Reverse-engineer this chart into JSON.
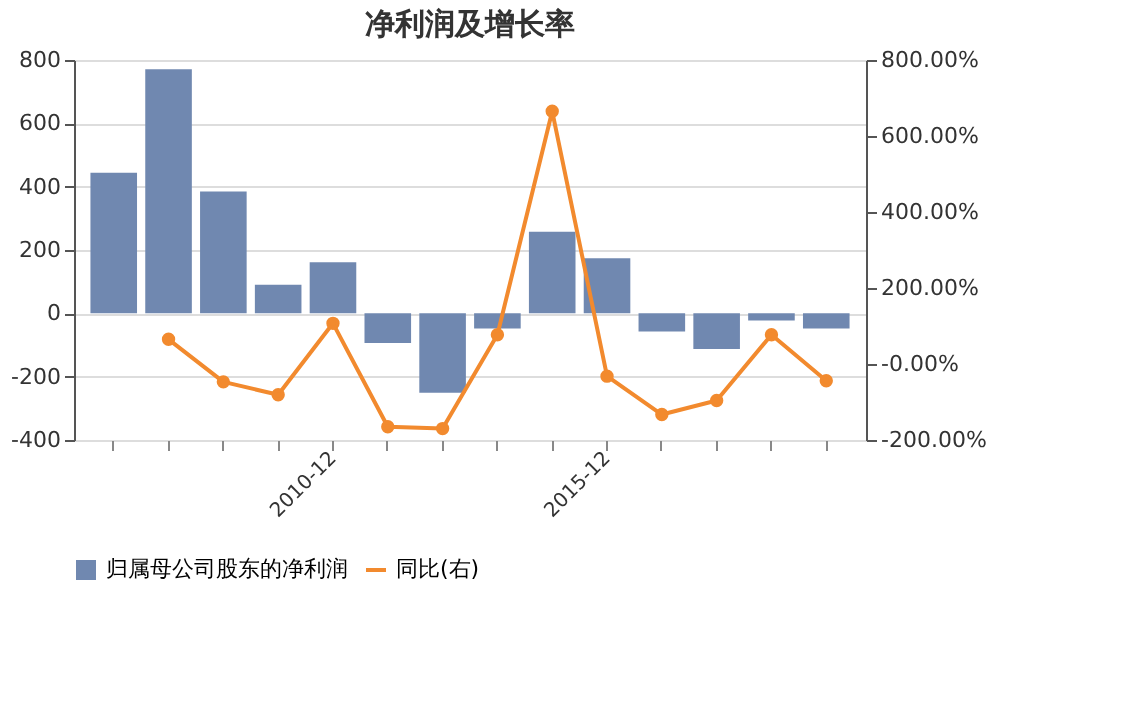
{
  "chart_data": {
    "type": "bar",
    "title": "净利润及增长率",
    "categories": [
      null,
      null,
      null,
      null,
      "2010-12",
      null,
      null,
      null,
      null,
      "2015-12",
      null,
      null,
      null,
      null
    ],
    "series": [
      {
        "name": "归属母公司股东的净利润",
        "color": "#7088b0",
        "values": [
          444,
          771,
          385,
          90,
          161,
          -94,
          -251,
          -48,
          258,
          174,
          -57,
          -113,
          -23,
          -48
        ]
      },
      {
        "name": "同比(右)",
        "type": "line",
        "axis": "y2",
        "color": "#f28a2e",
        "marker": "circle",
        "values": [
          null,
          65,
          -47,
          -81,
          107,
          -165,
          -170,
          77,
          665,
          -32,
          -133,
          -96,
          77,
          -44
        ]
      }
    ],
    "ylim": [
      -400,
      800
    ],
    "yticks": [
      -400,
      -200,
      0,
      200,
      400,
      600,
      800
    ],
    "y2lim": [
      -200,
      800
    ],
    "y2ticks": [
      {
        "value": -200,
        "label": "-200.00%"
      },
      {
        "value": 0,
        "label": "-0.00%"
      },
      {
        "value": 200,
        "label": "200.00%"
      },
      {
        "value": 400,
        "label": "400.00%"
      },
      {
        "value": 600,
        "label": "600.00%"
      },
      {
        "value": 800,
        "label": "800.00%"
      }
    ],
    "grid": "y",
    "legend": "bottom"
  }
}
